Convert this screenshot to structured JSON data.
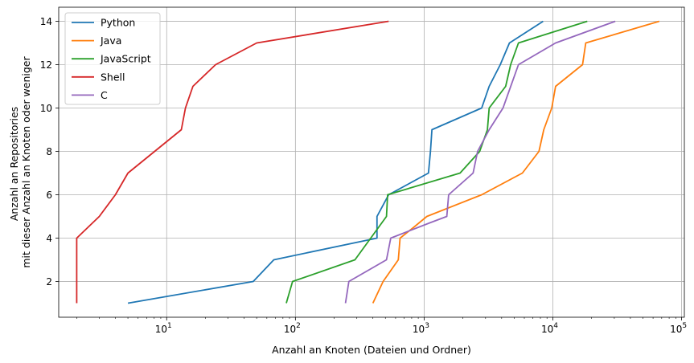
{
  "chart_data": {
    "type": "line",
    "xlabel": "Anzahl an Knoten (Dateien und Ordner)",
    "ylabel": [
      "Anzahl an Repositories",
      "mit dieser Anzahl an Knoten oder weniger"
    ],
    "xscale": "log",
    "xlim": [
      1.45,
      105000
    ],
    "ylim": [
      0.35,
      14.65
    ],
    "xticks": [
      10,
      100,
      1000,
      10000,
      100000
    ],
    "xtick_labels": [
      [
        "10",
        "1"
      ],
      [
        "10",
        "2"
      ],
      [
        "10",
        "3"
      ],
      [
        "10",
        "4"
      ],
      [
        "10",
        "5"
      ]
    ],
    "yticks": [
      2,
      4,
      6,
      8,
      10,
      12,
      14
    ],
    "ytick_labels": [
      "2",
      "4",
      "6",
      "8",
      "10",
      "12",
      "14"
    ],
    "grid": true,
    "legend_position": "top-left",
    "series": [
      {
        "name": "Python",
        "color": "#1f77b4",
        "points": [
          [
            5,
            1
          ],
          [
            47,
            2
          ],
          [
            68,
            3
          ],
          [
            430,
            4
          ],
          [
            430,
            5
          ],
          [
            530,
            6
          ],
          [
            1080,
            7
          ],
          [
            1120,
            8
          ],
          [
            1150,
            9
          ],
          [
            2800,
            10
          ],
          [
            3200,
            11
          ],
          [
            3900,
            12
          ],
          [
            4600,
            13
          ],
          [
            8400,
            14
          ]
        ]
      },
      {
        "name": "Java",
        "color": "#ff7f0e",
        "points": [
          [
            400,
            1
          ],
          [
            480,
            2
          ],
          [
            630,
            3
          ],
          [
            650,
            4
          ],
          [
            830,
            4.5
          ],
          [
            1050,
            5
          ],
          [
            2800,
            6
          ],
          [
            5800,
            7
          ],
          [
            7800,
            8
          ],
          [
            8500,
            9
          ],
          [
            9800,
            10
          ],
          [
            10500,
            11
          ],
          [
            17000,
            12
          ],
          [
            18000,
            13
          ],
          [
            67000,
            14
          ]
        ]
      },
      {
        "name": "JavaScript",
        "color": "#2ca02c",
        "points": [
          [
            85,
            1
          ],
          [
            95,
            2
          ],
          [
            290,
            3
          ],
          [
            510,
            5
          ],
          [
            520,
            6
          ],
          [
            1900,
            7
          ],
          [
            2700,
            8
          ],
          [
            3100,
            9
          ],
          [
            3200,
            10
          ],
          [
            4300,
            11
          ],
          [
            4700,
            12
          ],
          [
            5400,
            13
          ],
          [
            18500,
            14
          ]
        ]
      },
      {
        "name": "Shell",
        "color": "#d62728",
        "points": [
          [
            2,
            1
          ],
          [
            2,
            4
          ],
          [
            3,
            5
          ],
          [
            4,
            6
          ],
          [
            5,
            7
          ],
          [
            13,
            9
          ],
          [
            14,
            10
          ],
          [
            16,
            11
          ],
          [
            24,
            12
          ],
          [
            50,
            13
          ],
          [
            530,
            14
          ]
        ]
      },
      {
        "name": "C",
        "color": "#9467bd",
        "points": [
          [
            245,
            1
          ],
          [
            260,
            2
          ],
          [
            510,
            3
          ],
          [
            550,
            4
          ],
          [
            1100,
            4.7
          ],
          [
            1500,
            5
          ],
          [
            1550,
            6
          ],
          [
            2400,
            7
          ],
          [
            2600,
            8
          ],
          [
            3200,
            9
          ],
          [
            4100,
            10
          ],
          [
            5400,
            12
          ],
          [
            10500,
            13
          ],
          [
            30500,
            14
          ]
        ]
      }
    ]
  }
}
